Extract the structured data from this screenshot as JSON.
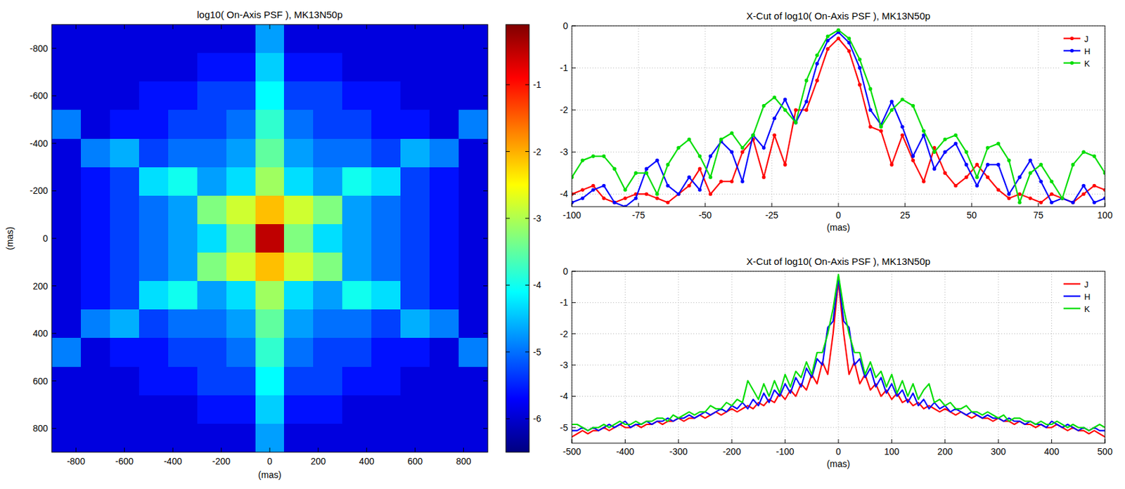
{
  "chart_data": [
    {
      "type": "heatmap",
      "title": "log10( On-Axis PSF ), MK13N50p",
      "x_label": "(mas)",
      "y_label": "(mas)",
      "xlim": [
        -900,
        900
      ],
      "ylim": [
        900,
        -900
      ],
      "xticks": [
        -800,
        -600,
        -400,
        -200,
        0,
        200,
        400,
        600,
        800
      ],
      "yticks": [
        -800,
        -600,
        -400,
        -200,
        0,
        200,
        400,
        600,
        800
      ],
      "x": [
        -840,
        -720,
        -600,
        -480,
        -360,
        -240,
        -120,
        0,
        120,
        240,
        360,
        480,
        600,
        720,
        840
      ],
      "y": [
        -840,
        -720,
        -600,
        -480,
        -360,
        -240,
        -120,
        0,
        120,
        240,
        360,
        480,
        600,
        720,
        840
      ],
      "cells": [
        [
          -5.9,
          -5.9,
          -5.9,
          -5.9,
          -5.9,
          -5.9,
          -5.9,
          -4.7,
          -5.9,
          -5.9,
          -5.9,
          -5.9,
          -5.9,
          -5.9,
          -5.9
        ],
        [
          -5.9,
          -5.9,
          -5.9,
          -5.9,
          -5.9,
          -5.6,
          -5.6,
          -4.4,
          -5.6,
          -5.6,
          -5.9,
          -5.9,
          -5.9,
          -5.9,
          -5.9
        ],
        [
          -5.9,
          -5.9,
          -5.9,
          -5.6,
          -5.6,
          -5.3,
          -5.3,
          -4.1,
          -5.3,
          -5.3,
          -5.6,
          -5.6,
          -5.9,
          -5.9,
          -5.9
        ],
        [
          -4.9,
          -5.9,
          -5.6,
          -5.6,
          -5.3,
          -5.3,
          -5.0,
          -3.8,
          -5.0,
          -5.3,
          -5.3,
          -5.6,
          -5.6,
          -5.9,
          -4.9
        ],
        [
          -5.9,
          -4.9,
          -4.6,
          -5.3,
          -5.0,
          -5.0,
          -4.7,
          -3.5,
          -4.7,
          -5.0,
          -5.0,
          -5.3,
          -4.6,
          -4.9,
          -5.9
        ],
        [
          -5.9,
          -5.6,
          -5.3,
          -4.3,
          -4.0,
          -4.7,
          -4.3,
          -3.1,
          -4.3,
          -4.7,
          -4.0,
          -4.3,
          -5.3,
          -5.6,
          -5.9
        ],
        [
          -5.9,
          -5.6,
          -5.3,
          -5.0,
          -4.7,
          -3.3,
          -2.8,
          -2.1,
          -2.8,
          -3.3,
          -4.7,
          -5.0,
          -5.3,
          -5.6,
          -5.9
        ],
        [
          -5.9,
          -5.6,
          -5.3,
          -5.0,
          -4.7,
          -4.3,
          -3.3,
          -0.5,
          -3.3,
          -4.3,
          -4.7,
          -5.0,
          -5.3,
          -5.6,
          -5.9
        ],
        [
          -5.9,
          -5.6,
          -5.3,
          -5.0,
          -4.7,
          -3.3,
          -2.8,
          -2.1,
          -2.8,
          -3.3,
          -4.7,
          -5.0,
          -5.3,
          -5.6,
          -5.9
        ],
        [
          -5.9,
          -5.6,
          -5.3,
          -4.3,
          -4.0,
          -4.7,
          -4.3,
          -3.1,
          -4.3,
          -4.7,
          -4.0,
          -4.3,
          -5.3,
          -5.6,
          -5.9
        ],
        [
          -5.9,
          -4.9,
          -4.6,
          -5.3,
          -5.0,
          -5.0,
          -4.7,
          -3.5,
          -4.7,
          -5.0,
          -5.0,
          -5.3,
          -4.6,
          -4.9,
          -5.9
        ],
        [
          -4.9,
          -5.9,
          -5.6,
          -5.6,
          -5.3,
          -5.3,
          -5.0,
          -3.8,
          -5.0,
          -5.3,
          -5.3,
          -5.6,
          -5.6,
          -5.9,
          -4.9
        ],
        [
          -5.9,
          -5.9,
          -5.9,
          -5.6,
          -5.6,
          -5.3,
          -5.3,
          -4.1,
          -5.3,
          -5.3,
          -5.6,
          -5.6,
          -5.9,
          -5.9,
          -5.9
        ],
        [
          -5.9,
          -5.9,
          -5.9,
          -5.9,
          -5.9,
          -5.6,
          -5.6,
          -4.4,
          -5.6,
          -5.6,
          -5.9,
          -5.9,
          -5.9,
          -5.9,
          -5.9
        ],
        [
          -5.9,
          -5.9,
          -5.9,
          -5.9,
          -5.9,
          -5.9,
          -5.9,
          -4.7,
          -5.9,
          -5.9,
          -5.9,
          -5.9,
          -5.9,
          -5.9,
          -5.9
        ]
      ],
      "colorbar_range": [
        -6.5,
        -0.1
      ],
      "colorbar_ticks": [
        -1,
        -2,
        -3,
        -4,
        -5,
        -6
      ]
    },
    {
      "type": "line",
      "title": "X-Cut of log10( On-Axis PSF ), MK13N50p",
      "x_label": "(mas)",
      "xlim": [
        -100,
        100
      ],
      "ylim": [
        -4.3,
        0
      ],
      "xticks": [
        -100,
        -75,
        -50,
        -25,
        0,
        25,
        50,
        75,
        100
      ],
      "yticks": [
        -4,
        -3,
        -2,
        -1,
        0
      ],
      "grid": true,
      "legend": "top-right",
      "marker": "dot",
      "x": [
        -100,
        -96,
        -92,
        -88,
        -84,
        -80,
        -76,
        -72,
        -68,
        -64,
        -60,
        -56,
        -52,
        -48,
        -44,
        -40,
        -36,
        -32,
        -28,
        -24,
        -20,
        -16,
        -12,
        -8,
        -4,
        0,
        4,
        8,
        12,
        16,
        20,
        24,
        28,
        32,
        36,
        40,
        44,
        48,
        52,
        56,
        60,
        64,
        68,
        72,
        76,
        80,
        84,
        88,
        92,
        96,
        100
      ],
      "series": [
        {
          "name": "J",
          "color": "#ff0000",
          "values": [
            -4.0,
            -3.9,
            -3.8,
            -4.1,
            -4.2,
            -4.1,
            -4.0,
            -4.0,
            -4.1,
            -4.2,
            -4.0,
            -3.8,
            -3.4,
            -4.0,
            -3.7,
            -3.7,
            -3.0,
            -2.7,
            -3.6,
            -2.6,
            -3.3,
            -2.0,
            -2.0,
            -1.3,
            -0.55,
            -0.3,
            -0.6,
            -1.4,
            -2.4,
            -2.5,
            -3.3,
            -2.6,
            -3.2,
            -3.7,
            -2.9,
            -3.5,
            -3.8,
            -3.6,
            -3.3,
            -3.6,
            -3.9,
            -4.1,
            -4.0,
            -4.1,
            -4.2,
            -4.0,
            -4.1,
            -4.2,
            -4.0,
            -3.8,
            -3.9
          ]
        },
        {
          "name": "H",
          "color": "#0000ff",
          "values": [
            -4.2,
            -4.1,
            -3.9,
            -3.8,
            -4.2,
            -4.3,
            -4.1,
            -3.4,
            -3.2,
            -3.8,
            -4.0,
            -3.6,
            -3.9,
            -3.1,
            -2.75,
            -3.0,
            -3.7,
            -2.6,
            -2.9,
            -2.2,
            -1.75,
            -2.3,
            -1.8,
            -0.9,
            -0.35,
            -0.15,
            -0.4,
            -1.0,
            -2.0,
            -2.35,
            -1.8,
            -2.4,
            -3.1,
            -2.6,
            -3.4,
            -3.0,
            -2.8,
            -3.3,
            -3.8,
            -3.3,
            -3.3,
            -4.0,
            -3.6,
            -3.2,
            -3.7,
            -4.2,
            -4.1,
            -4.2,
            -3.8,
            -4.2,
            -4.1
          ]
        },
        {
          "name": "K",
          "color": "#00dd00",
          "values": [
            -3.6,
            -3.2,
            -3.1,
            -3.1,
            -3.4,
            -3.9,
            -3.5,
            -3.5,
            -4.0,
            -3.3,
            -2.9,
            -2.7,
            -3.1,
            -3.6,
            -2.7,
            -2.55,
            -2.9,
            -2.6,
            -1.9,
            -1.7,
            -2.0,
            -2.3,
            -1.3,
            -0.7,
            -0.25,
            -0.1,
            -0.3,
            -0.8,
            -1.5,
            -2.4,
            -2.0,
            -1.75,
            -1.9,
            -2.5,
            -3.0,
            -2.7,
            -2.6,
            -3.0,
            -3.6,
            -2.9,
            -2.8,
            -3.2,
            -4.2,
            -3.5,
            -3.3,
            -3.7,
            -4.1,
            -3.3,
            -3.0,
            -3.1,
            -3.5
          ]
        }
      ]
    },
    {
      "type": "line",
      "title": "X-Cut of log10( On-Axis PSF ), MK13N50p",
      "x_label": "(mas)",
      "xlim": [
        -500,
        500
      ],
      "ylim": [
        -5.5,
        0
      ],
      "xticks": [
        -500,
        -400,
        -300,
        -200,
        -100,
        0,
        100,
        200,
        300,
        400,
        500
      ],
      "yticks": [
        -5,
        -4,
        -3,
        -2,
        -1,
        0
      ],
      "grid": true,
      "legend": "top-right",
      "marker": "none",
      "x": [
        -500,
        -490,
        -480,
        -470,
        -460,
        -450,
        -440,
        -430,
        -420,
        -410,
        -400,
        -390,
        -380,
        -370,
        -360,
        -350,
        -340,
        -330,
        -320,
        -310,
        -300,
        -290,
        -280,
        -270,
        -260,
        -250,
        -240,
        -230,
        -220,
        -210,
        -200,
        -190,
        -180,
        -170,
        -160,
        -150,
        -140,
        -130,
        -120,
        -110,
        -100,
        -90,
        -80,
        -70,
        -60,
        -50,
        -40,
        -30,
        -20,
        -10,
        0,
        10,
        20,
        30,
        40,
        50,
        60,
        70,
        80,
        90,
        100,
        110,
        120,
        130,
        140,
        150,
        160,
        170,
        180,
        190,
        200,
        210,
        220,
        230,
        240,
        250,
        260,
        270,
        280,
        290,
        300,
        310,
        320,
        330,
        340,
        350,
        360,
        370,
        380,
        390,
        400,
        410,
        420,
        430,
        440,
        450,
        460,
        470,
        480,
        490,
        500
      ],
      "series": [
        {
          "name": "J",
          "color": "#ff0000",
          "values": [
            -5.3,
            -5.2,
            -5.1,
            -5.2,
            -5.1,
            -5.1,
            -5.0,
            -5.1,
            -5.0,
            -4.9,
            -5.0,
            -5.0,
            -4.9,
            -5.0,
            -4.9,
            -4.9,
            -4.8,
            -4.9,
            -4.8,
            -4.8,
            -4.7,
            -4.8,
            -4.7,
            -4.7,
            -4.6,
            -4.7,
            -4.6,
            -4.5,
            -4.6,
            -4.5,
            -4.4,
            -4.5,
            -4.4,
            -4.3,
            -4.4,
            -4.2,
            -4.3,
            -4.1,
            -4.2,
            -3.9,
            -4.1,
            -3.8,
            -4.0,
            -3.6,
            -3.8,
            -3.3,
            -3.6,
            -2.9,
            -3.3,
            -2.0,
            -0.3,
            -2.0,
            -3.3,
            -2.9,
            -3.6,
            -3.3,
            -3.8,
            -3.6,
            -4.0,
            -3.8,
            -4.1,
            -3.9,
            -4.2,
            -4.1,
            -4.3,
            -4.2,
            -4.4,
            -4.3,
            -4.4,
            -4.5,
            -4.4,
            -4.5,
            -4.6,
            -4.5,
            -4.6,
            -4.7,
            -4.6,
            -4.7,
            -4.7,
            -4.8,
            -4.7,
            -4.8,
            -4.8,
            -4.9,
            -4.8,
            -4.9,
            -4.9,
            -5.0,
            -4.9,
            -5.0,
            -5.0,
            -4.9,
            -5.0,
            -5.1,
            -5.0,
            -5.1,
            -5.1,
            -5.2,
            -5.1,
            -5.2,
            -5.3
          ]
        },
        {
          "name": "H",
          "color": "#0000ff",
          "values": [
            -5.1,
            -5.1,
            -5.0,
            -5.1,
            -5.0,
            -5.1,
            -5.0,
            -4.9,
            -5.0,
            -4.9,
            -4.8,
            -5.0,
            -4.9,
            -4.9,
            -4.8,
            -4.9,
            -4.8,
            -4.8,
            -4.7,
            -4.8,
            -4.7,
            -4.7,
            -4.6,
            -4.7,
            -4.6,
            -4.5,
            -4.6,
            -4.5,
            -4.4,
            -4.5,
            -4.3,
            -4.4,
            -4.2,
            -4.4,
            -4.1,
            -4.3,
            -3.9,
            -4.2,
            -3.8,
            -4.0,
            -3.6,
            -3.9,
            -3.4,
            -3.7,
            -3.1,
            -3.4,
            -2.8,
            -3.0,
            -1.8,
            -1.6,
            -0.2,
            -1.6,
            -1.8,
            -3.0,
            -2.8,
            -3.4,
            -3.1,
            -3.7,
            -3.4,
            -3.9,
            -3.6,
            -4.0,
            -3.8,
            -4.2,
            -3.9,
            -4.3,
            -4.1,
            -4.4,
            -4.2,
            -4.4,
            -4.3,
            -4.5,
            -4.4,
            -4.5,
            -4.6,
            -4.5,
            -4.6,
            -4.7,
            -4.6,
            -4.7,
            -4.7,
            -4.8,
            -4.7,
            -4.8,
            -4.8,
            -4.9,
            -4.8,
            -4.9,
            -4.9,
            -5.0,
            -4.8,
            -4.9,
            -5.0,
            -4.9,
            -5.0,
            -5.1,
            -5.0,
            -5.1,
            -5.0,
            -5.1,
            -5.1
          ]
        },
        {
          "name": "K",
          "color": "#00dd00",
          "values": [
            -4.9,
            -4.9,
            -5.0,
            -5.1,
            -5.0,
            -5.0,
            -4.9,
            -5.0,
            -4.9,
            -4.8,
            -4.9,
            -4.9,
            -4.8,
            -4.9,
            -4.8,
            -4.8,
            -4.7,
            -4.7,
            -4.8,
            -4.6,
            -4.7,
            -4.6,
            -4.5,
            -4.6,
            -4.5,
            -4.5,
            -4.3,
            -4.4,
            -4.4,
            -4.2,
            -4.3,
            -4.1,
            -4.2,
            -3.5,
            -3.8,
            -4.1,
            -3.6,
            -4.0,
            -3.5,
            -3.9,
            -3.3,
            -3.7,
            -3.2,
            -3.4,
            -2.9,
            -3.3,
            -2.6,
            -2.6,
            -2.0,
            -1.2,
            -0.1,
            -1.2,
            -2.0,
            -2.6,
            -2.6,
            -3.3,
            -2.9,
            -3.4,
            -3.2,
            -3.7,
            -3.3,
            -3.9,
            -3.5,
            -4.0,
            -3.6,
            -4.1,
            -3.8,
            -3.6,
            -4.2,
            -4.1,
            -4.3,
            -4.2,
            -4.4,
            -4.4,
            -4.3,
            -4.5,
            -4.5,
            -4.6,
            -4.5,
            -4.6,
            -4.7,
            -4.6,
            -4.8,
            -4.7,
            -4.7,
            -4.8,
            -4.8,
            -4.9,
            -4.8,
            -4.9,
            -4.9,
            -4.8,
            -4.9,
            -5.0,
            -4.9,
            -5.0,
            -5.0,
            -5.1,
            -5.0,
            -4.9,
            -5.0
          ]
        }
      ]
    }
  ]
}
